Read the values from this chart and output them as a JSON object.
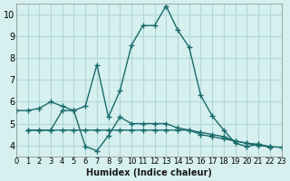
{
  "xlabel": "Humidex (Indice chaleur)",
  "ylabel": "",
  "background_color": "#d6efef",
  "grid_color": "#b0d8d8",
  "line_color": "#1a6b6b",
  "xlim": [
    0,
    23
  ],
  "ylim": [
    3.5,
    10.5
  ],
  "xticks": [
    0,
    1,
    2,
    3,
    4,
    5,
    6,
    7,
    8,
    9,
    10,
    11,
    12,
    13,
    14,
    15,
    16,
    17,
    18,
    19,
    20,
    21,
    22,
    23
  ],
  "yticks": [
    4,
    5,
    6,
    7,
    8,
    9,
    10
  ],
  "series": [
    [
      5.6,
      5.6,
      5.7,
      6.0,
      5.8,
      5.6,
      5.8,
      7.7,
      5.3,
      6.5,
      8.6,
      9.5,
      9.5,
      10.4,
      9.3,
      8.5,
      6.3,
      5.35,
      4.7,
      4.1,
      3.95,
      4.05,
      3.9
    ],
    [
      4.7,
      4.7,
      4.7,
      5.6,
      5.6,
      3.95,
      3.75,
      4.45,
      5.3,
      5.0,
      5.0,
      5.0,
      5.0,
      4.8,
      4.7,
      4.5,
      4.4,
      4.3,
      4.2,
      4.1,
      4.05,
      3.95
    ],
    [
      4.7,
      4.7,
      4.7,
      4.7,
      4.7,
      4.7,
      4.7,
      4.7,
      4.7,
      4.7,
      4.7,
      4.7,
      4.7,
      4.7,
      4.7,
      4.6,
      4.5,
      4.4,
      4.2,
      4.1,
      4.0,
      3.95,
      3.9
    ]
  ],
  "series_x": [
    [
      0,
      1,
      2,
      3,
      4,
      5,
      6,
      7,
      8,
      9,
      10,
      11,
      12,
      13,
      14,
      15,
      16,
      17,
      18,
      19,
      20,
      21,
      22
    ],
    [
      1,
      2,
      3,
      4,
      5,
      6,
      7,
      8,
      9,
      10,
      11,
      12,
      13,
      14,
      15,
      16,
      17,
      18,
      19,
      20,
      21,
      22
    ],
    [
      1,
      2,
      3,
      4,
      5,
      6,
      7,
      8,
      9,
      10,
      11,
      12,
      13,
      14,
      15,
      16,
      17,
      18,
      19,
      20,
      21,
      22,
      23
    ]
  ]
}
